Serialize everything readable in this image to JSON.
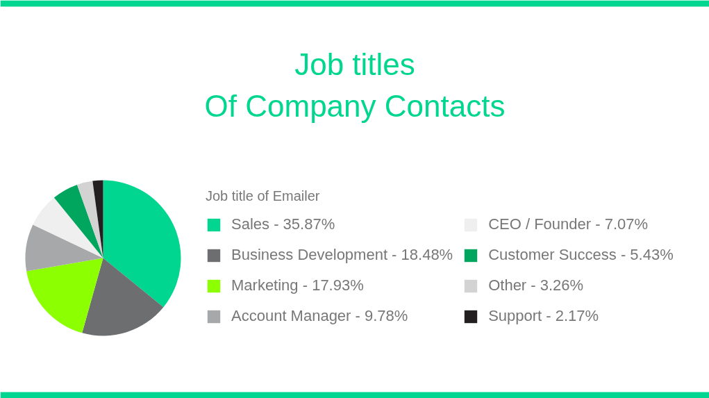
{
  "chart_data": {
    "type": "pie",
    "title": "Job titles\nOf Company Contacts",
    "legend_title": "Job title of Emailer",
    "categories": [
      "Sales",
      "Business Development",
      "Marketing",
      "Account Manager",
      "CEO / Founder",
      "Customer Success",
      "Other",
      "Support"
    ],
    "values": [
      35.87,
      18.48,
      17.93,
      9.78,
      7.07,
      5.43,
      3.26,
      2.17
    ],
    "colors": [
      "#00d68f",
      "#6d6e70",
      "#8cff00",
      "#a7a8aa",
      "#efefef",
      "#00a65e",
      "#d3d3d3",
      "#231f20"
    ],
    "value_labels": [
      "35.87%",
      "18.48%",
      "17.93%",
      "9.78%",
      "7.07%",
      "5.43%",
      "3.26%",
      "2.17%"
    ],
    "legend": "right"
  }
}
